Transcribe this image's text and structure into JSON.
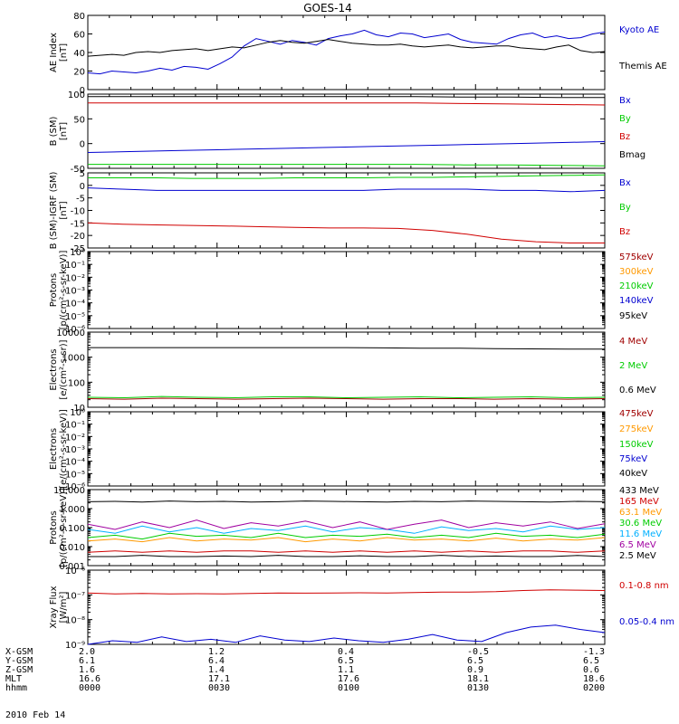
{
  "title": "GOES-14",
  "date_label": "2010 Feb 14",
  "orbit_rows": [
    {
      "label": "X-GSM",
      "values": [
        "2.0",
        "1.2",
        "0.4",
        "-0.5",
        "-1.3"
      ]
    },
    {
      "label": "Y-GSM",
      "values": [
        "6.1",
        "6.4",
        "6.5",
        "6.5",
        "6.5"
      ]
    },
    {
      "label": "Z-GSM",
      "values": [
        "1.6",
        "1.4",
        "1.1",
        "0.9",
        "0.6"
      ]
    },
    {
      "label": "MLT",
      "values": [
        "16.6",
        "17.1",
        "17.6",
        "18.1",
        "18.6"
      ]
    },
    {
      "label": "hhmm",
      "values": [
        "0000",
        "0030",
        "0100",
        "0130",
        "0200"
      ]
    }
  ],
  "colors": {
    "black": "#000000",
    "blue": "#0000d0",
    "green": "#00cc00",
    "red": "#d00000",
    "darkred": "#a00000",
    "orange": "#ff9900",
    "yellow": "#d8d800",
    "cyan": "#00b0ff",
    "magenta": "#a000a0"
  },
  "chart_data": [
    {
      "type": "line",
      "panel": "ae",
      "ylabel": "AE Index [nT]",
      "ylim": [
        0,
        80
      ],
      "yticks": [
        "0",
        "20",
        "40",
        "60",
        "80"
      ],
      "series": [
        {
          "name": "Kyoto AE",
          "color": "blue",
          "values": [
            18,
            17,
            20,
            19,
            18,
            20,
            23,
            21,
            25,
            24,
            22,
            28,
            35,
            47,
            55,
            52,
            49,
            53,
            51,
            48,
            55,
            58,
            60,
            64,
            59,
            57,
            61,
            60,
            56,
            58,
            60,
            54,
            51,
            50,
            49,
            55,
            59,
            61,
            56,
            58,
            55,
            56,
            60,
            62
          ]
        },
        {
          "name": "Themis AE",
          "color": "black",
          "values": [
            36,
            37,
            38,
            37,
            40,
            41,
            40,
            42,
            43,
            44,
            42,
            44,
            46,
            45,
            48,
            51,
            53,
            51,
            50,
            52,
            54,
            52,
            50,
            49,
            48,
            48,
            49,
            47,
            46,
            47,
            48,
            46,
            45,
            46,
            47,
            47,
            45,
            44,
            43,
            46,
            48,
            42,
            40,
            41
          ]
        }
      ]
    },
    {
      "type": "line",
      "panel": "b",
      "ylabel": "B (SM) [nT]",
      "ylim": [
        -50,
        100
      ],
      "yticks": [
        "-50",
        "0",
        "50",
        "100"
      ],
      "series": [
        {
          "name": "Bx",
          "color": "blue",
          "values": [
            -18,
            -16,
            -14,
            -12,
            -10,
            -8,
            -6,
            -4,
            -2,
            0,
            2,
            4
          ]
        },
        {
          "name": "By",
          "color": "green",
          "values": [
            -42,
            -42,
            -42,
            -42,
            -42,
            -42,
            -42,
            -42,
            -43,
            -43,
            -44,
            -45
          ]
        },
        {
          "name": "Bz",
          "color": "red",
          "values": [
            82,
            82,
            82,
            82,
            82,
            82,
            82,
            82,
            81,
            80,
            79,
            78
          ]
        },
        {
          "name": "Bmag",
          "color": "black",
          "values": [
            95,
            95,
            95,
            95,
            95,
            95,
            95,
            95,
            94,
            94,
            93,
            93
          ]
        }
      ]
    },
    {
      "type": "line",
      "panel": "db",
      "ylabel": "B (SM)-IGRF (SM) [nT]",
      "ylim": [
        -25,
        5
      ],
      "yticks": [
        "-25",
        "-20",
        "-15",
        "-10",
        "-5",
        "0",
        "5"
      ],
      "series": [
        {
          "name": "Bx",
          "color": "blue",
          "values": [
            -1,
            -1.5,
            -2,
            -2,
            -2,
            -2,
            -2,
            -2,
            -2,
            -1.5,
            -1.5,
            -1.5,
            -2,
            -2,
            -2.5,
            -2
          ]
        },
        {
          "name": "By",
          "color": "green",
          "values": [
            3,
            3,
            3,
            2.8,
            2.8,
            2.8,
            3,
            3,
            3,
            3.2,
            3.2,
            3.4,
            3.6,
            3.8,
            4,
            4.2
          ]
        },
        {
          "name": "Bz",
          "color": "red",
          "values": [
            -15,
            -15.5,
            -15.8,
            -16,
            -16.2,
            -16.5,
            -16.8,
            -17,
            -17,
            -17.2,
            -18,
            -19.5,
            -21.5,
            -22.5,
            -23,
            -23
          ]
        }
      ]
    },
    {
      "type": "line",
      "panel": "p1",
      "ylabel": "Protons [p/(cm²-s-sr-keV)]",
      "log": true,
      "ylim": [
        1e-06,
        1
      ],
      "yticks": [
        "10⁻⁶",
        "10⁻⁵",
        "10⁻⁴",
        "10⁻³",
        "10⁻²",
        "10⁻¹",
        "10⁰"
      ],
      "series": [
        {
          "name": "575keV",
          "color": "darkred",
          "values": []
        },
        {
          "name": "300keV",
          "color": "orange",
          "values": []
        },
        {
          "name": "210keV",
          "color": "green",
          "values": []
        },
        {
          "name": "140keV",
          "color": "blue",
          "values": []
        },
        {
          "name": "95keV",
          "color": "black",
          "values": []
        }
      ]
    },
    {
      "type": "line",
      "panel": "e1",
      "ylabel": "Electrons [e/(cm²-s-sr)]",
      "log": true,
      "ylim": [
        10,
        10000
      ],
      "yticks": [
        "10",
        "100",
        "1000",
        "10000"
      ],
      "series": [
        {
          "name": "4 MeV",
          "color": "darkred",
          "values": [
            22,
            21,
            23,
            22,
            21,
            22,
            23,
            22,
            21,
            22,
            22,
            21,
            22,
            21,
            22
          ]
        },
        {
          "name": "2 MeV",
          "color": "green",
          "values": [
            25,
            24,
            27,
            25,
            24,
            26,
            26,
            24,
            25,
            26,
            24,
            25,
            26,
            24,
            25
          ]
        },
        {
          "name": "0.6 MeV",
          "color": "black",
          "values": [
            2400,
            2400,
            2400,
            2400,
            2400,
            2400,
            2400,
            2400,
            2350,
            2300,
            2300,
            2200,
            2150,
            2100,
            2100
          ]
        }
      ]
    },
    {
      "type": "line",
      "panel": "e2",
      "ylabel": "Electrons [e/(cm²-s-sr-keV)]",
      "log": true,
      "ylim": [
        1e-06,
        1
      ],
      "yticks": [
        "10⁻⁶",
        "10⁻⁵",
        "10⁻⁴",
        "10⁻³",
        "10⁻²",
        "10⁻¹",
        "10⁰"
      ],
      "series": [
        {
          "name": "475keV",
          "color": "darkred",
          "values": []
        },
        {
          "name": "275keV",
          "color": "orange",
          "values": []
        },
        {
          "name": "150keV",
          "color": "green",
          "values": []
        },
        {
          "name": "75keV",
          "color": "blue",
          "values": []
        },
        {
          "name": "40keV",
          "color": "black",
          "values": []
        }
      ]
    },
    {
      "type": "line",
      "panel": "p2",
      "ylabel": "Protons [p/(cm²-s-sr-keV)]",
      "log": true,
      "ylim": [
        0.001,
        10
      ],
      "yticks": [
        "0.001",
        "0.010",
        "0.100",
        "1.000",
        "10.000"
      ],
      "series": [
        {
          "name": "433 MeV",
          "color": "black",
          "values": [
            2.3,
            2.4,
            2.2,
            2.5,
            2.3,
            2.4,
            2.2,
            2.3,
            2.5,
            2.4,
            2.3,
            2.2,
            2.4,
            2.3,
            2.5,
            2.4,
            2.3,
            2.2,
            2.4,
            2.3
          ]
        },
        {
          "name": "165 MeV",
          "color": "red",
          "values": [
            0.005,
            0.006,
            0.005,
            0.006,
            0.005,
            0.006,
            0.006,
            0.005,
            0.006,
            0.005,
            0.006,
            0.005,
            0.006,
            0.005,
            0.006,
            0.005,
            0.006,
            0.006,
            0.005,
            0.006
          ]
        },
        {
          "name": "63.1 MeV",
          "color": "orange",
          "values": [
            0.02,
            0.025,
            0.018,
            0.03,
            0.02,
            0.025,
            0.022,
            0.03,
            0.018,
            0.025,
            0.02,
            0.03,
            0.022,
            0.025,
            0.02,
            0.028,
            0.02,
            0.025,
            0.022,
            0.03
          ]
        },
        {
          "name": "30.6 MeV",
          "color": "green",
          "values": [
            0.03,
            0.04,
            0.025,
            0.05,
            0.035,
            0.04,
            0.03,
            0.05,
            0.03,
            0.04,
            0.035,
            0.045,
            0.03,
            0.04,
            0.03,
            0.05,
            0.035,
            0.04,
            0.03,
            0.045
          ]
        },
        {
          "name": "11.6 MeV",
          "color": "cyan",
          "values": [
            0.08,
            0.05,
            0.12,
            0.06,
            0.1,
            0.05,
            0.09,
            0.07,
            0.12,
            0.06,
            0.1,
            0.08,
            0.05,
            0.11,
            0.07,
            0.09,
            0.06,
            0.12,
            0.08,
            0.1
          ]
        },
        {
          "name": "6.5 MeV",
          "color": "magenta",
          "values": [
            0.15,
            0.08,
            0.2,
            0.1,
            0.25,
            0.09,
            0.18,
            0.12,
            0.22,
            0.1,
            0.2,
            0.08,
            0.15,
            0.25,
            0.1,
            0.18,
            0.12,
            0.2,
            0.09,
            0.16
          ]
        },
        {
          "name": "2.5 MeV",
          "color": "black",
          "values": [
            0.003,
            0.003,
            0.0035,
            0.003,
            0.003,
            0.0032,
            0.003,
            0.0035,
            0.003,
            0.003,
            0.0033,
            0.003,
            0.003,
            0.0035,
            0.003,
            0.0032,
            0.003,
            0.003,
            0.0034,
            0.003
          ]
        }
      ]
    },
    {
      "type": "line",
      "panel": "xray",
      "ylabel": "Xray Flux [W/m²]",
      "log": true,
      "ylim": [
        1e-09,
        1e-06
      ],
      "yticks": [
        "10⁻⁹",
        "10⁻⁸",
        "10⁻⁷",
        "10⁻⁶"
      ],
      "series": [
        {
          "name": "0.1-0.8 nm",
          "color": "red",
          "values": [
            1.2e-07,
            1.1e-07,
            1.15e-07,
            1.1e-07,
            1.12e-07,
            1.1e-07,
            1.15e-07,
            1.2e-07,
            1.18e-07,
            1.2e-07,
            1.22e-07,
            1.2e-07,
            1.25e-07,
            1.3e-07,
            1.3e-07,
            1.35e-07,
            1.5e-07,
            1.6e-07,
            1.55e-07,
            1.5e-07
          ]
        },
        {
          "name": "0.05-0.4 nm",
          "color": "blue",
          "values": [
            1e-09,
            1.4e-09,
            1.2e-09,
            2e-09,
            1.3e-09,
            1.6e-09,
            1.2e-09,
            2.2e-09,
            1.5e-09,
            1.3e-09,
            1.8e-09,
            1.4e-09,
            1.2e-09,
            1.6e-09,
            2.5e-09,
            1.5e-09,
            1.3e-09,
            3e-09,
            5e-09,
            6e-09,
            4e-09,
            3e-09
          ]
        }
      ]
    }
  ]
}
